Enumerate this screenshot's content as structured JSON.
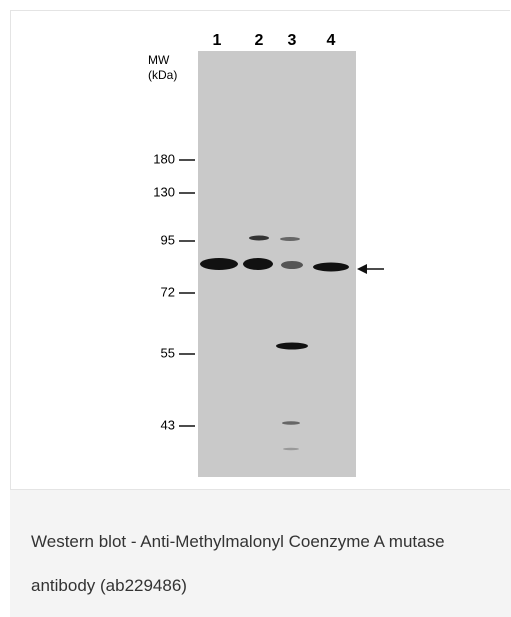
{
  "figure": {
    "mw_label": "MW",
    "unit_label": "(kDa)",
    "lanes": [
      "1",
      "2",
      "3",
      "4"
    ],
    "markers": [
      "180",
      "130",
      "95",
      "72",
      "55",
      "43"
    ]
  },
  "caption": "Western blot - Anti-Methylmalonyl Coenzyme A mutase antibody (ab229486)"
}
